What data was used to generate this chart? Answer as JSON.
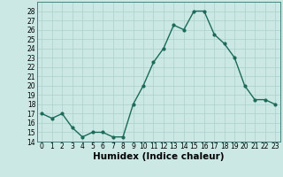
{
  "x": [
    0,
    1,
    2,
    3,
    4,
    5,
    6,
    7,
    8,
    9,
    10,
    11,
    12,
    13,
    14,
    15,
    16,
    17,
    18,
    19,
    20,
    21,
    22,
    23
  ],
  "y": [
    17,
    16.5,
    17,
    15.5,
    14.5,
    15,
    15,
    14.5,
    14.5,
    18,
    20,
    22.5,
    24,
    26.5,
    26,
    28,
    28,
    25.5,
    24.5,
    23,
    20,
    18.5,
    18.5,
    18
  ],
  "line_color": "#1a6b5a",
  "marker_color": "#1a6b5a",
  "bg_color": "#cce8e4",
  "grid_color": "#aad0cc",
  "xlabel": "Humidex (Indice chaleur)",
  "ylim": [
    14,
    29
  ],
  "yticks": [
    14,
    15,
    16,
    17,
    18,
    19,
    20,
    21,
    22,
    23,
    24,
    25,
    26,
    27,
    28
  ],
  "xticks": [
    0,
    1,
    2,
    3,
    4,
    5,
    6,
    7,
    8,
    9,
    10,
    11,
    12,
    13,
    14,
    15,
    16,
    17,
    18,
    19,
    20,
    21,
    22,
    23
  ],
  "xlim": [
    -0.5,
    23.5
  ],
  "tick_fontsize": 5.5,
  "xlabel_fontsize": 7.5,
  "linewidth": 1.0,
  "markersize": 2.0
}
